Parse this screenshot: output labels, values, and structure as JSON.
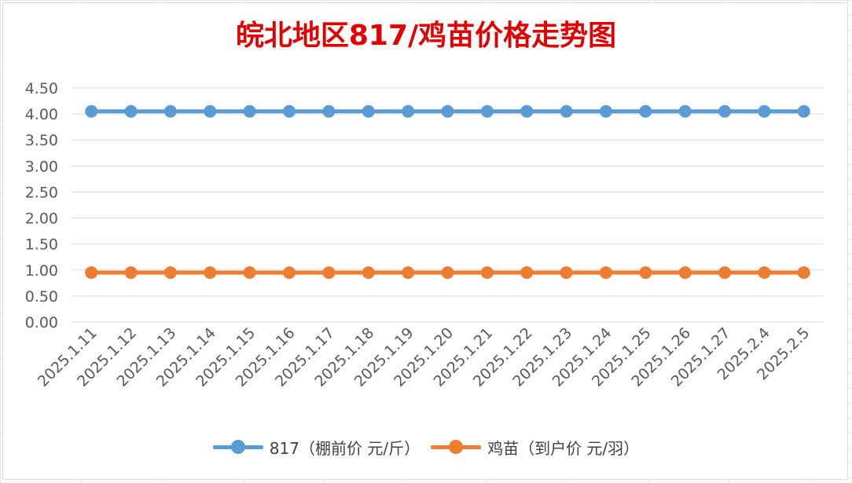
{
  "chart_data": {
    "type": "line",
    "title": "皖北地区817/鸡苗价格走势图",
    "categories": [
      "2025.1.11",
      "2025.1.12",
      "2025.1.13",
      "2025.1.14",
      "2025.1.15",
      "2025.1.16",
      "2025.1.17",
      "2025.1.18",
      "2025.1.19",
      "2025.1.20",
      "2025.1.21",
      "2025.1.22",
      "2025.1.23",
      "2025.1.24",
      "2025.1.25",
      "2025.1.26",
      "2025.1.27",
      "2025.2.4",
      "2025.2.5"
    ],
    "series": [
      {
        "name": "817（棚前价 元/斤）",
        "color": "#5b9bd5",
        "values": [
          4.05,
          4.05,
          4.05,
          4.05,
          4.05,
          4.05,
          4.05,
          4.05,
          4.05,
          4.05,
          4.05,
          4.05,
          4.05,
          4.05,
          4.05,
          4.05,
          4.05,
          4.05,
          4.05
        ]
      },
      {
        "name": "鸡苗（到户价 元/羽）",
        "color": "#ed7d31",
        "values": [
          0.95,
          0.95,
          0.95,
          0.95,
          0.95,
          0.95,
          0.95,
          0.95,
          0.95,
          0.95,
          0.95,
          0.95,
          0.95,
          0.95,
          0.95,
          0.95,
          0.95,
          0.95,
          0.95
        ]
      }
    ],
    "ylim": [
      0,
      4.5
    ],
    "yticks": [
      "0.00",
      "0.50",
      "1.00",
      "1.50",
      "2.00",
      "2.50",
      "3.00",
      "3.50",
      "4.00",
      "4.50"
    ],
    "grid": true,
    "legend_position": "bottom"
  }
}
